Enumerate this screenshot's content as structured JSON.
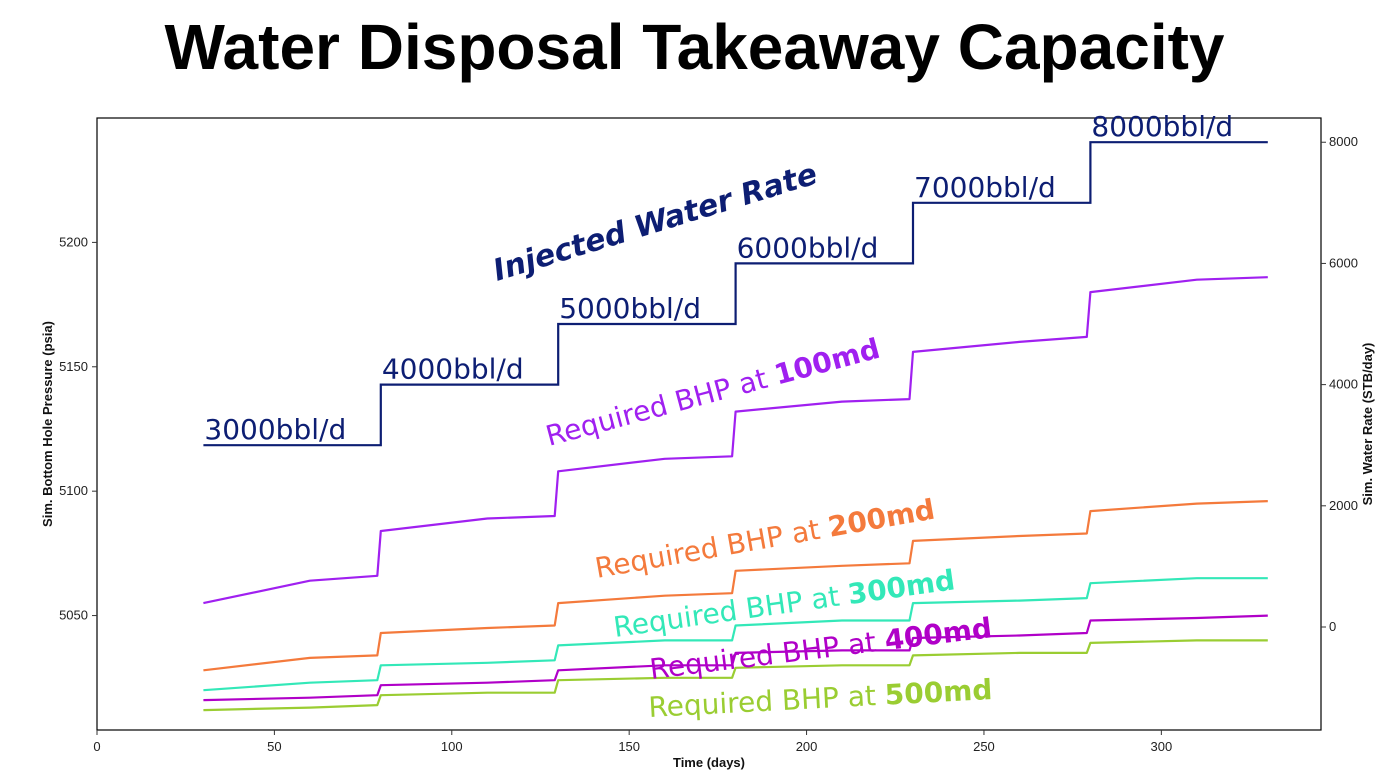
{
  "chart_data": {
    "type": "line",
    "title": "Water Disposal Takeaway Capacity",
    "xlabel": "Time (days)",
    "ylabel_left": "Sim. Bottom Hole Pressure (psia)",
    "ylabel_right": "Sim. Water Rate (STB/day)",
    "xlim": [
      0,
      345
    ],
    "ylim_left": [
      5004,
      5250
    ],
    "ylim_right": [
      -1700,
      8400
    ],
    "x_ticks": [
      0,
      50,
      100,
      150,
      200,
      250,
      300
    ],
    "y_ticks_left": [
      5050,
      5100,
      5150,
      5200
    ],
    "y_ticks_right": [
      0,
      2000,
      4000,
      6000,
      8000
    ],
    "grid": false,
    "colors": {
      "rate": "#0d1e73",
      "md100": "#a020f0",
      "md200": "#f47a3c",
      "md300": "#33e8b8",
      "md400": "#b000c8",
      "md500": "#9acd32"
    },
    "rate_series": {
      "name": "Injected Water Rate",
      "axis": "right",
      "x": [
        30,
        80,
        80,
        130,
        130,
        180,
        180,
        230,
        230,
        280,
        280,
        330
      ],
      "y": [
        3000,
        3000,
        4000,
        4000,
        5000,
        5000,
        6000,
        6000,
        7000,
        7000,
        8000,
        8000
      ]
    },
    "rate_step_labels": [
      {
        "text": "3000bbl/d",
        "x": 30,
        "y": 3000
      },
      {
        "text": "4000bbl/d",
        "x": 80,
        "y": 4000
      },
      {
        "text": "5000bbl/d",
        "x": 130,
        "y": 5000
      },
      {
        "text": "6000bbl/d",
        "x": 180,
        "y": 6000
      },
      {
        "text": "7000bbl/d",
        "x": 230,
        "y": 7000
      },
      {
        "text": "8000bbl/d",
        "x": 280,
        "y": 8000
      }
    ],
    "series": [
      {
        "key": "md100",
        "prefix": "Required BHP at ",
        "bold": "100md",
        "axis": "left",
        "x": [
          30,
          60,
          79,
          80,
          110,
          129,
          130,
          160,
          179,
          180,
          210,
          229,
          230,
          260,
          279,
          280,
          310,
          330
        ],
        "y": [
          5055,
          5064,
          5066,
          5084,
          5089,
          5090,
          5108,
          5113,
          5114,
          5132,
          5136,
          5137,
          5156,
          5160,
          5162,
          5180,
          5185,
          5186
        ]
      },
      {
        "key": "md200",
        "prefix": "Required BHP at ",
        "bold": "200md",
        "axis": "left",
        "x": [
          30,
          60,
          79,
          80,
          110,
          129,
          130,
          160,
          179,
          180,
          210,
          229,
          230,
          260,
          279,
          280,
          310,
          330
        ],
        "y": [
          5028,
          5033,
          5034,
          5043,
          5045,
          5046,
          5055,
          5058,
          5059,
          5068,
          5070,
          5071,
          5080,
          5082,
          5083,
          5092,
          5095,
          5096
        ]
      },
      {
        "key": "md300",
        "prefix": "Required BHP at ",
        "bold": "300md",
        "axis": "left",
        "x": [
          30,
          60,
          79,
          80,
          110,
          129,
          130,
          160,
          179,
          180,
          210,
          229,
          230,
          260,
          279,
          280,
          310,
          330
        ],
        "y": [
          5020,
          5023,
          5024,
          5030,
          5031,
          5032,
          5038,
          5040,
          5040,
          5046,
          5048,
          5048,
          5055,
          5056,
          5057,
          5063,
          5065,
          5065
        ]
      },
      {
        "key": "md400",
        "prefix": "Required BHP at ",
        "bold": "400md",
        "axis": "left",
        "x": [
          30,
          60,
          79,
          80,
          110,
          129,
          130,
          160,
          179,
          180,
          210,
          229,
          230,
          260,
          279,
          280,
          310,
          330
        ],
        "y": [
          5016,
          5017,
          5018,
          5022,
          5023,
          5024,
          5028,
          5030,
          5030,
          5035,
          5036,
          5036,
          5041,
          5042,
          5043,
          5048,
          5049,
          5050
        ]
      },
      {
        "key": "md500",
        "prefix": "Required BHP at ",
        "bold": "500md",
        "axis": "left",
        "x": [
          30,
          60,
          79,
          80,
          110,
          129,
          130,
          160,
          179,
          180,
          210,
          229,
          230,
          260,
          279,
          280,
          310,
          330
        ],
        "y": [
          5012,
          5013,
          5014,
          5018,
          5019,
          5019,
          5024,
          5025,
          5025,
          5029,
          5030,
          5030,
          5034,
          5035,
          5035,
          5039,
          5040,
          5040
        ]
      }
    ],
    "annotations": {
      "rate_title": "Injected Water Rate",
      "md100": {
        "prefix": "Required BHP at ",
        "bold": "100md"
      },
      "md200": {
        "prefix": "Required BHP at ",
        "bold": "200md"
      },
      "md300": {
        "prefix": "Required BHP at ",
        "bold": "300md"
      },
      "md400": {
        "prefix": "Required BHP at ",
        "bold": "400md"
      },
      "md500": {
        "prefix": "Required BHP at ",
        "bold": "500md"
      }
    }
  }
}
